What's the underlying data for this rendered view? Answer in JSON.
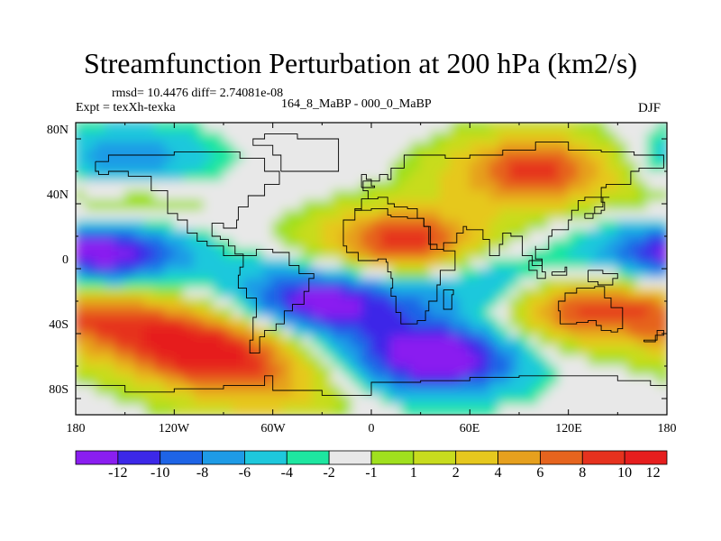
{
  "title": "Streamfunction Perturbation at 200 hPa (km2/s)",
  "rmsd_line": "rmsd= 10.4476 diff= 2.74081e-08",
  "expt_line": "Expt = texXh-texka",
  "case_line": "164_8_MaBP - 000_0_MaBP",
  "season": "DJF",
  "lat_labels": [
    "80N",
    "40N",
    "0",
    "40S",
    "80S"
  ],
  "lon_labels": [
    "180",
    "120W",
    "60W",
    "0",
    "60E",
    "120E",
    "180"
  ],
  "colorbar": {
    "colors": [
      "#8a1ef0",
      "#3c28e8",
      "#1e64e6",
      "#1e9be6",
      "#1ec8dc",
      "#1ee6a0",
      "#e8e8e8",
      "#a0e01e",
      "#c8dc1e",
      "#e6c81e",
      "#e6a01e",
      "#e6641e",
      "#e6321e",
      "#e61e1e"
    ],
    "labels": [
      "-12",
      "-10",
      "-8",
      "-6",
      "-4",
      "-2",
      "-1",
      "1",
      "2",
      "4",
      "6",
      "8",
      "10",
      "12"
    ]
  },
  "chart_data": {
    "type": "heatmap",
    "title": "Streamfunction Perturbation at 200 hPa (km2/s)",
    "x_range": [
      -180,
      180
    ],
    "y_range": [
      -90,
      90
    ],
    "levels": [
      -12,
      -10,
      -8,
      -6,
      -4,
      -2,
      -1,
      1,
      2,
      4,
      6,
      8,
      10,
      12
    ],
    "features": [
      {
        "lon": 120,
        "lat": -23,
        "value": 12
      },
      {
        "lon": -165,
        "lat": 10,
        "value": -13
      },
      {
        "lon": 20,
        "lat": 15,
        "value": 12
      },
      {
        "lon": -150,
        "lat": 40,
        "value": 6
      },
      {
        "lon": -160,
        "lat": -30,
        "value": 8
      },
      {
        "lon": -100,
        "lat": -50,
        "value": 13
      },
      {
        "lon": 40,
        "lat": -55,
        "value": -13
      },
      {
        "lon": -30,
        "lat": -20,
        "value": -12
      },
      {
        "lon": -150,
        "lat": 63,
        "value": -7
      },
      {
        "lon": -60,
        "lat": -75,
        "value": 5
      },
      {
        "lon": 100,
        "lat": 60,
        "value": 11
      },
      {
        "lon": 80,
        "lat": -10,
        "value": -8
      }
    ]
  }
}
